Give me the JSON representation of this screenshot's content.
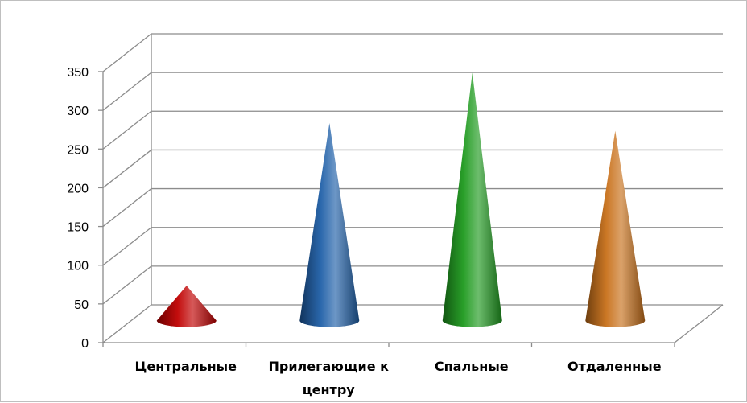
{
  "chart_data": {
    "type": "bar",
    "style": "3d-cone",
    "categories": [
      "Центральные",
      "Прилегающие к центру",
      "Спальные",
      "Отдаленные"
    ],
    "category_lines": [
      [
        "Центральные"
      ],
      [
        "Прилегающие к",
        "центру"
      ],
      [
        "Спальные"
      ],
      [
        "Отдаленные"
      ]
    ],
    "values": [
      45,
      255,
      320,
      245
    ],
    "colors": [
      "#c00000",
      "#1f5fa8",
      "#1e9a1e",
      "#c8701a"
    ],
    "ylim": [
      0,
      350
    ],
    "yticks": [
      0,
      50,
      100,
      150,
      200,
      250,
      300,
      350
    ],
    "grid": true,
    "title": "",
    "xlabel": "",
    "ylabel": ""
  }
}
